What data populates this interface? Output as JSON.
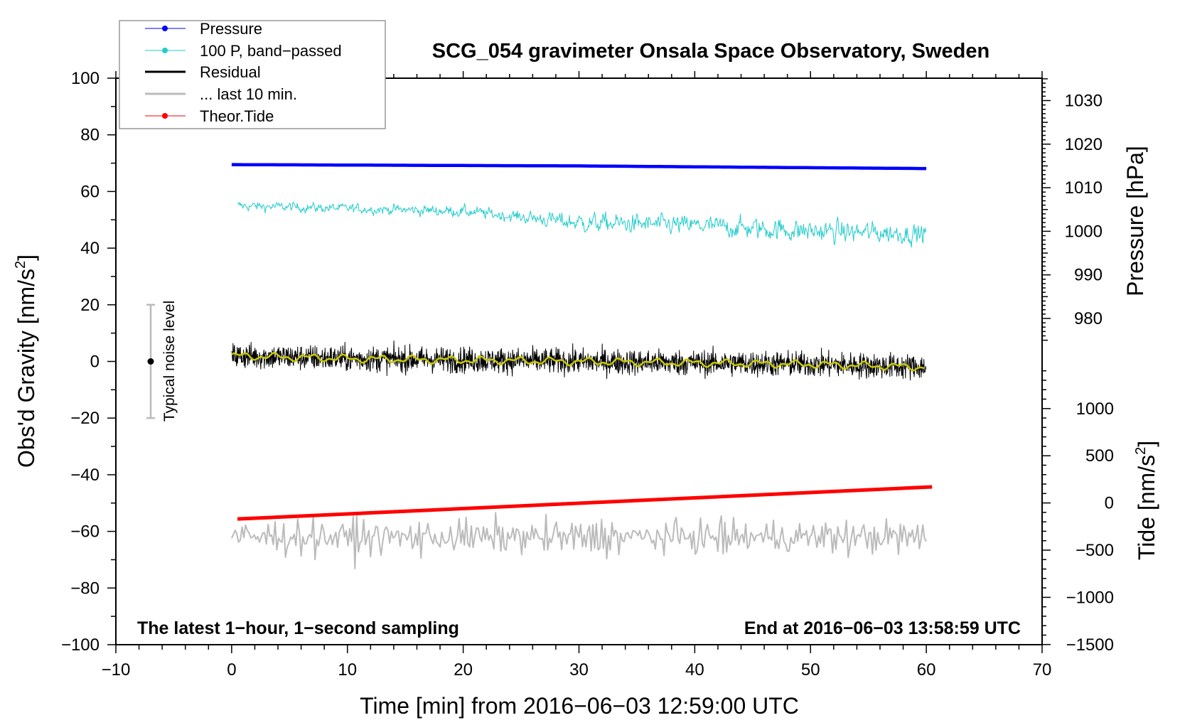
{
  "chart_data": {
    "type": "line",
    "title": "SCG_054 gravimeter Onsala Space Observatory, Sweden",
    "xlabel": "Time [min] from 2016−06−03 12:59:00 UTC",
    "ylabel_left": "Obs'd Gravity [nm/s",
    "ylabel_left_sup": "2",
    "ylabel_left_end": "]",
    "ylabel_right_pressure": "Pressure [hPa]",
    "ylabel_right_tide": "Tide [nm/s",
    "ylabel_right_tide_sup": "2",
    "ylabel_right_tide_end": "]",
    "xlim": [
      -10,
      70
    ],
    "ylim": [
      -100,
      100
    ],
    "pressure_lim": [
      975,
      1035
    ],
    "tide_lim": [
      -1500,
      1400
    ],
    "x_ticks": [
      "−10",
      "0",
      "10",
      "20",
      "30",
      "40",
      "50",
      "60",
      "70"
    ],
    "x_tick_values": [
      -10,
      0,
      10,
      20,
      30,
      40,
      50,
      60,
      70
    ],
    "y_ticks": [
      "100",
      "80",
      "60",
      "40",
      "20",
      "0",
      "−20",
      "−40",
      "−60",
      "−80",
      "−100"
    ],
    "y_tick_values": [
      100,
      80,
      60,
      40,
      20,
      0,
      -20,
      -40,
      -60,
      -80,
      -100
    ],
    "pressure_ticks": [
      "1030",
      "1020",
      "1010",
      "1000",
      "990",
      "980"
    ],
    "pressure_tick_values": [
      1030,
      1020,
      1010,
      1000,
      990,
      980
    ],
    "tide_ticks": [
      "1000",
      "500",
      "0",
      "−500",
      "−1000",
      "−1500"
    ],
    "tide_tick_values": [
      1000,
      500,
      0,
      -500,
      -1000,
      -1500
    ],
    "legend": {
      "placement": "top-left",
      "entries": [
        {
          "label": "Pressure",
          "color": "#0000ff",
          "marker": "dot"
        },
        {
          "label": "100 P, band−passed",
          "color": "#22cccc",
          "marker": "dot"
        },
        {
          "label": "Residual",
          "color": "#000000",
          "marker": "none"
        },
        {
          "label": "... last 10 min.",
          "color": "#bbbbbb",
          "marker": "none"
        },
        {
          "label": "Theor.Tide",
          "color": "#ff0000",
          "marker": "dot"
        }
      ]
    },
    "series": [
      {
        "name": "Pressure",
        "axis": "pressure",
        "x": [
          0,
          10,
          20,
          30,
          40,
          50,
          60
        ],
        "values": [
          1015.3,
          1015.2,
          1015.1,
          1015.0,
          1014.8,
          1014.6,
          1014.4
        ],
        "color": "#0000ff"
      },
      {
        "name": "100 P, band-passed",
        "axis": "gravity",
        "x": [
          0,
          10,
          20,
          25,
          30,
          40,
          50,
          60
        ],
        "values": [
          55,
          54,
          53,
          51,
          49,
          48,
          46,
          45
        ],
        "noise_amplitude": [
          2.5,
          2.5,
          3,
          3,
          5,
          5,
          6,
          5
        ],
        "color": "#22cccc"
      },
      {
        "name": "Residual",
        "axis": "gravity",
        "x": [
          0,
          10,
          20,
          30,
          40,
          50,
          60
        ],
        "values": [
          2,
          1,
          0.5,
          0,
          -0.5,
          -1,
          -2
        ],
        "noise_amplitude": 4.5,
        "color": "#000000"
      },
      {
        "name": "Residual smoothed",
        "axis": "gravity",
        "x": [
          0,
          10,
          20,
          30,
          40,
          50,
          60
        ],
        "values": [
          2,
          1,
          0.5,
          0,
          -0.5,
          -1,
          -2
        ],
        "color": "#c8c800"
      },
      {
        "name": "... last 10 min.",
        "axis": "gravity",
        "x": [
          0,
          60
        ],
        "values": [
          -62,
          -62
        ],
        "noise_amplitude": 5,
        "color": "#bbbbbb"
      },
      {
        "name": "Theor.Tide",
        "axis": "tide",
        "x": [
          0.5,
          60.5
        ],
        "values": [
          -170,
          170
        ],
        "color": "#ff0000"
      }
    ],
    "noise_level": {
      "label": "Typical noise level",
      "center": 0,
      "range": [
        -20,
        20
      ]
    },
    "annotations": {
      "left": "The latest 1−hour, 1−second sampling",
      "right": "End at 2016−06−03 13:58:59 UTC"
    }
  }
}
